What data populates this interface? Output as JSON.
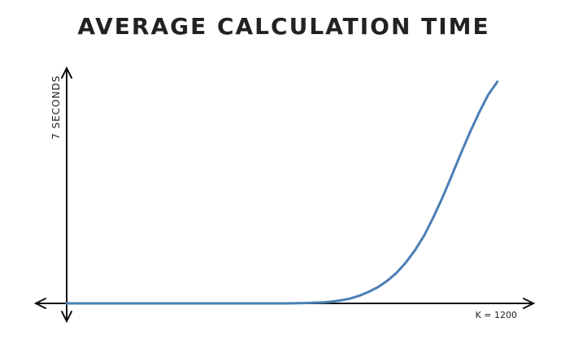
{
  "chart_data": {
    "type": "line",
    "title": "AVERAGE CALCULATION TIME",
    "xlabel": "",
    "ylabel": "",
    "y_axis_annotation": "7 SECONDS",
    "x_axis_annotation": "K = 1200",
    "xlim": [
      0,
      1200
    ],
    "ylim": [
      0,
      7
    ],
    "grid": false,
    "legend": "none",
    "colors": {
      "line": "#4a7fb5",
      "axis": "#111111"
    },
    "series": [
      {
        "x": [
          0,
          100,
          200,
          300,
          400,
          500,
          600,
          650,
          700,
          725,
          750,
          775,
          800,
          825,
          850,
          875,
          900,
          925,
          950,
          975,
          1000,
          1025,
          1050,
          1075,
          1100,
          1125,
          1150,
          1175
        ],
        "y": [
          0,
          0,
          0,
          0,
          0,
          0,
          0,
          0.01,
          0.03,
          0.06,
          0.1,
          0.16,
          0.25,
          0.37,
          0.52,
          0.72,
          0.97,
          1.29,
          1.68,
          2.15,
          2.72,
          3.35,
          4.04,
          4.74,
          5.42,
          6.05,
          6.62,
          7.03
        ]
      }
    ]
  }
}
